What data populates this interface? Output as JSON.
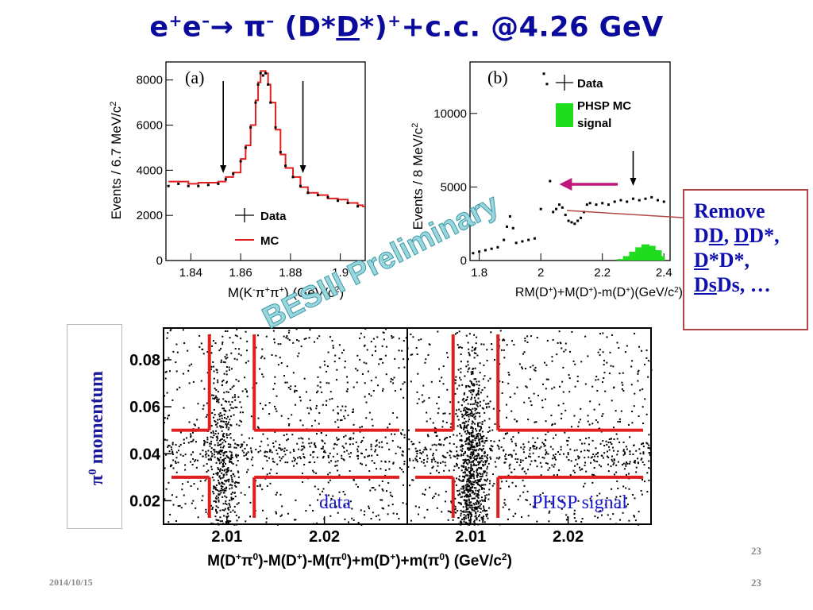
{
  "slide": {
    "title": {
      "lhs": "e",
      "lhs_sup1": "+",
      "lhs_mid": "e",
      "lhs_sup2": "–",
      "arrow": "→",
      "pion": " π",
      "pion_sup": "–",
      "open": " (D*",
      "dbar": "D",
      "close": "*)",
      "close_sup": "+",
      "tail": "+c.c. @4.26 GeV"
    },
    "footer_date": "2014/10/15",
    "page_number": "23",
    "inner_page_number": "23",
    "watermark": "BESIII Preliminary"
  },
  "remove_box": {
    "line1": "Remove",
    "line2_a": "D",
    "line2_b": "D",
    "line2_c": ", ",
    "line2_d": "D",
    "line2_e": "D*,",
    "line3_a": "D",
    "line3_b": "*D*,",
    "line4_a": "Ds",
    "line4_b": "Ds, …"
  },
  "pi0_label": {
    "pi": "π",
    "sup": "0",
    "text": " momentum"
  },
  "colors": {
    "title_blue": "#0a0a9c",
    "mc_red": "#e02020",
    "phsp_green": "#1fdc1f",
    "arrow_magenta": "#c0187a",
    "watermark_teal": "#9bd6dc",
    "label_blue": "#1a1acc"
  },
  "chart_data": [
    {
      "type": "line",
      "panel_label": "(a)",
      "xlabel": "M(K",
      "xlabel_sup1": "-",
      "xlabel_mid1": "π",
      "xlabel_sup2": "+",
      "xlabel_mid2": "π",
      "xlabel_sup3": "+",
      "xlabel_tail": ") (GeV/c",
      "xlabel_sup4": "2",
      "xlabel_end": ")",
      "ylabel": "Events / 6.7 MeV/c",
      "ylabel_sup": "2",
      "xlim": [
        1.83,
        1.91
      ],
      "ylim": [
        0,
        8800
      ],
      "xticks": [
        1.84,
        1.86,
        1.88,
        1.9
      ],
      "xtick_labels": [
        "1.84",
        "1.86",
        "1.88",
        "1.9"
      ],
      "yticks": [
        0,
        2000,
        4000,
        6000,
        8000
      ],
      "ytick_labels": [
        "0",
        "2000",
        "4000",
        "6000",
        "8000"
      ],
      "legend": [
        {
          "name": "Data",
          "marker": "cross"
        },
        {
          "name": "MC",
          "marker": "line"
        }
      ],
      "arrows_at_x": [
        1.853,
        1.885
      ],
      "series": [
        {
          "name": "Data",
          "x": [
            1.831,
            1.835,
            1.839,
            1.843,
            1.847,
            1.851,
            1.854,
            1.857,
            1.86,
            1.862,
            1.864,
            1.866,
            1.867,
            1.868,
            1.869,
            1.87,
            1.871,
            1.872,
            1.874,
            1.876,
            1.878,
            1.881,
            1.884,
            1.887,
            1.891,
            1.895,
            1.899,
            1.903,
            1.907
          ],
          "y": [
            3300,
            3400,
            3300,
            3300,
            3350,
            3400,
            3600,
            3850,
            4400,
            5000,
            5900,
            7000,
            7800,
            8300,
            8200,
            8300,
            7800,
            7000,
            5900,
            4800,
            4200,
            3700,
            3300,
            3000,
            2900,
            2800,
            2650,
            2550,
            2400
          ]
        },
        {
          "name": "MC",
          "x": [
            1.831,
            1.835,
            1.839,
            1.843,
            1.847,
            1.851,
            1.854,
            1.857,
            1.86,
            1.862,
            1.864,
            1.866,
            1.867,
            1.868,
            1.869,
            1.87,
            1.871,
            1.872,
            1.874,
            1.876,
            1.878,
            1.881,
            1.884,
            1.887,
            1.891,
            1.895,
            1.899,
            1.903,
            1.907,
            1.909
          ],
          "y": [
            3500,
            3500,
            3400,
            3450,
            3450,
            3500,
            3700,
            3900,
            4500,
            5100,
            6000,
            7100,
            7900,
            8400,
            8400,
            8300,
            7800,
            7000,
            5800,
            4700,
            4100,
            3700,
            3250,
            3000,
            2900,
            2750,
            2700,
            2550,
            2450,
            2400
          ]
        }
      ]
    },
    {
      "type": "scatter",
      "panel_label": "(b)",
      "xlabel": "RM(D",
      "xlabel_sup1": "+",
      "xlabel_mid1": ")+M(D",
      "xlabel_sup2": "+",
      "xlabel_mid2": ")-m(D",
      "xlabel_sup3": "+",
      "xlabel_tail": ")(GeV/c",
      "xlabel_sup4": "2",
      "xlabel_end": ")",
      "ylabel": "Events / 8 MeV/c",
      "ylabel_sup": "2",
      "xlim": [
        1.77,
        2.42
      ],
      "ylim": [
        0,
        13500
      ],
      "xticks": [
        1.8,
        2.0,
        2.2,
        2.4
      ],
      "xtick_labels": [
        "1.8",
        "2",
        "2.2",
        "2.4"
      ],
      "yticks": [
        0,
        5000,
        10000
      ],
      "ytick_labels": [
        "0",
        "5000",
        "10000"
      ],
      "legend": [
        {
          "name": "Data",
          "marker": "cross"
        },
        {
          "name": "PHSP MC signal",
          "marker": "box",
          "lines": [
            "PHSP MC",
            "signal"
          ]
        }
      ],
      "arrow_down_at_x": 2.3,
      "arrow_left_from_x": 2.25,
      "arrow_left_to_x": 2.06,
      "series": [
        {
          "name": "Data",
          "x": [
            1.78,
            1.8,
            1.82,
            1.84,
            1.86,
            1.88,
            1.89,
            1.9,
            1.91,
            1.92,
            1.94,
            1.96,
            1.98,
            2.0,
            2.01,
            2.02,
            2.03,
            2.04,
            2.05,
            2.06,
            2.07,
            2.08,
            2.09,
            2.1,
            2.11,
            2.12,
            2.13,
            2.14,
            2.15,
            2.16,
            2.18,
            2.2,
            2.22,
            2.24,
            2.26,
            2.28,
            2.3,
            2.32,
            2.34,
            2.36,
            2.38,
            2.4
          ],
          "y": [
            500,
            600,
            700,
            800,
            900,
            1400,
            2300,
            3000,
            2200,
            1200,
            1300,
            1400,
            1500,
            3500,
            12700,
            12000,
            5400,
            3300,
            3500,
            3800,
            3600,
            3100,
            2700,
            2600,
            2500,
            2700,
            2900,
            3300,
            3800,
            3900,
            3800,
            3900,
            3800,
            4000,
            4100,
            4000,
            4200,
            4100,
            4200,
            4300,
            4100,
            4000
          ]
        },
        {
          "name": "PHSP MC signal",
          "x": [
            2.26,
            2.28,
            2.3,
            2.32,
            2.34,
            2.36,
            2.38,
            2.39
          ],
          "y": [
            100,
            300,
            600,
            900,
            1100,
            1000,
            700,
            300
          ]
        }
      ]
    },
    {
      "type": "scatter",
      "panel_label": "data",
      "ylabel": "π0 momentum",
      "xlabel": "M(D",
      "xlabel_sup1": "+",
      "xlabel_mid1": "π",
      "xlabel_sup2": "0",
      "xlabel_mid2": ")-M(D",
      "xlabel_sup3": "+",
      "xlabel_mid3": ")-M(π",
      "xlabel_sup4": "0",
      "xlabel_mid4": ")+m(D",
      "xlabel_sup5": "+",
      "xlabel_mid5": ")+m(π",
      "xlabel_sup6": "0",
      "xlabel_tail": ") (GeV/c",
      "xlabel_sup7": "2",
      "xlabel_end": ")",
      "xlim": [
        2.0035,
        2.0285
      ],
      "ylim": [
        0.01,
        0.0935
      ],
      "xticks": [
        2.01,
        2.02
      ],
      "xtick_labels": [
        "2.01",
        "2.02"
      ],
      "yticks": [
        0.02,
        0.04,
        0.06,
        0.08
      ],
      "ytick_labels": [
        "0.02",
        "0.04",
        "0.06",
        "0.08"
      ],
      "cut_lines": {
        "x": [
          2.0082,
          2.0128
        ],
        "y": [
          0.03,
          0.05
        ]
      },
      "distribution": {
        "band_center_x": 2.0095,
        "band_center_y": 0.041,
        "n_points": 1300
      }
    },
    {
      "type": "scatter",
      "panel_label": "PHSP signal",
      "xlim": [
        2.0035,
        2.0285
      ],
      "ylim": [
        0.01,
        0.0935
      ],
      "xticks": [
        2.01,
        2.02
      ],
      "xtick_labels": [
        "2.01",
        "2.02"
      ],
      "cut_lines": {
        "x": [
          2.0082,
          2.0128
        ],
        "y": [
          0.03,
          0.05
        ]
      },
      "distribution": {
        "band_center_x": 2.01,
        "band_center_y": 0.04,
        "n_points": 1700
      }
    }
  ]
}
